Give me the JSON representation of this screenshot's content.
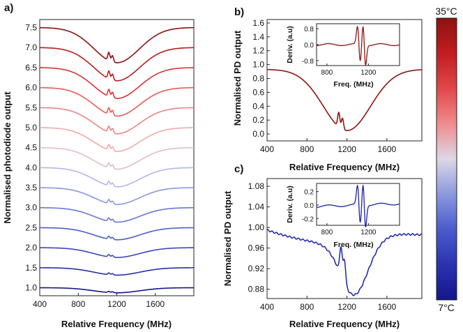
{
  "chart_data": [
    {
      "panel": "a)",
      "type": "line",
      "xlabel": "Relative Frequency (MHz)",
      "ylabel": "Normalised photodiode output",
      "xlim": [
        400,
        2000
      ],
      "ylim": [
        0.8,
        7.7
      ],
      "xticks": [
        "400",
        "800",
        "1200",
        "1600"
      ],
      "yticks": [
        "1.0",
        "1.5",
        "2.0",
        "2.5",
        "3.0",
        "3.5",
        "4.0",
        "4.5",
        "5.0",
        "5.5",
        "6.0",
        "6.5",
        "7.0",
        "7.5"
      ],
      "offsets": [
        1.0,
        1.5,
        2.0,
        2.5,
        3.0,
        3.5,
        4.0,
        4.5,
        5.0,
        5.5,
        6.0,
        6.5,
        7.0,
        7.5
      ],
      "dip_depths": [
        0.13,
        0.19,
        0.25,
        0.31,
        0.37,
        0.43,
        0.49,
        0.55,
        0.61,
        0.67,
        0.73,
        0.79,
        0.85,
        0.9
      ],
      "colors": [
        "#15168c",
        "#2a2fa8",
        "#3a45bd",
        "#4c5dcc",
        "#6677d6",
        "#8a97dd",
        "#b2b6e6",
        "#e2bcc6",
        "#f2a9ab",
        "#ee8385",
        "#e65a5c",
        "#d93335",
        "#b81c1e",
        "#8c1212"
      ]
    },
    {
      "panel": "b)",
      "type": "line",
      "xlabel": "Relative Frequency (MHz)",
      "ylabel": "Normalised PD output",
      "xlim": [
        400,
        1950
      ],
      "ylim": [
        -0.1,
        1.65
      ],
      "xticks": [
        "400",
        "800",
        "1200",
        "1600"
      ],
      "yticks": [
        "0.0",
        "0.2",
        "0.4",
        "0.6",
        "0.8",
        "1.0",
        "1.2",
        "1.4",
        "1.6"
      ],
      "color": "#8c1414",
      "inset": {
        "xlabel": "Freq. (MHz)",
        "ylabel": "Deriv. (a.u)",
        "xlim": [
          700,
          1500
        ],
        "ylim": [
          -1.05,
          1.05
        ],
        "xticks": [
          "800",
          "1200"
        ],
        "yticks": [
          "0.8",
          "0.0",
          "-0.8"
        ]
      }
    },
    {
      "panel": "c)",
      "type": "line",
      "xlabel": "Relative Frequency (MHz)",
      "ylabel": "Normalised PD output",
      "xlim": [
        400,
        1950
      ],
      "ylim": [
        0.862,
        1.095
      ],
      "xticks": [
        "400",
        "800",
        "1200",
        "1600"
      ],
      "yticks": [
        "0.88",
        "0.92",
        "0.96",
        "1.00",
        "1.04",
        "1.08"
      ],
      "color": "#1a20a8",
      "inset": {
        "xlabel": "Freq. (MHz)",
        "ylabel": "Deriv. (a.u)",
        "xlim": [
          700,
          1500
        ],
        "ylim": [
          -0.3,
          0.32
        ],
        "xticks": [
          "800",
          "1200"
        ],
        "yticks": [
          "0.2",
          "0.0",
          "-0.2"
        ]
      }
    }
  ],
  "colorbar": {
    "top_label": "35°C",
    "bottom_label": "7°C",
    "colors": [
      "#8c1212",
      "#c21d1f",
      "#e0484a",
      "#ef8c8e",
      "#ddd7e6",
      "#8c98de",
      "#4a5bcc",
      "#2a33b0",
      "#14168c"
    ]
  }
}
